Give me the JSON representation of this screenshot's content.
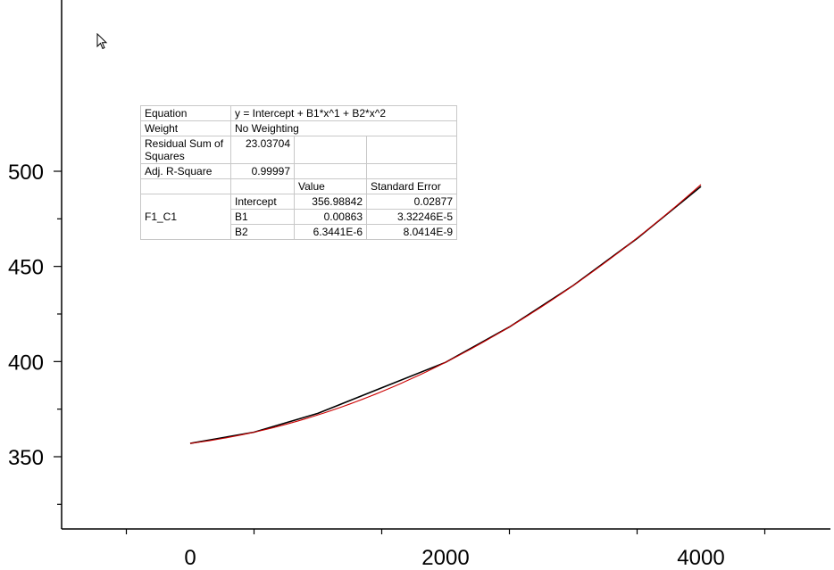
{
  "chart_data": {
    "type": "line",
    "title": "",
    "xlabel": "",
    "ylabel": "",
    "xlim": [
      -500,
      5000
    ],
    "ylim": [
      325,
      510
    ],
    "x_ticks": [
      0,
      2000,
      4000
    ],
    "y_ticks": [
      350,
      400,
      450,
      500
    ],
    "x_tick_labels": [
      "0",
      "2000",
      "4000"
    ],
    "y_tick_labels": [
      "350",
      "400",
      "450",
      "500"
    ],
    "grid": false,
    "series": [
      {
        "color": "#000000",
        "x": [
          0,
          500,
          1000,
          1500,
          2000,
          2500,
          3000,
          3500,
          4000
        ],
        "y": [
          357.0,
          362.9,
          372.8,
          386.2,
          399.6,
          418.2,
          440.0,
          464.7,
          492.0
        ]
      },
      {
        "color": "#cc0000",
        "fit": {
          "intercept": 356.98842,
          "b1": 0.00863,
          "b2": 6.3441e-06
        },
        "x_range": [
          0,
          4000
        ]
      }
    ]
  },
  "fit_table": {
    "equation_label": "Equation",
    "equation": "y = Intercept + B1*x^1 + B2*x^2",
    "weight_label": "Weight",
    "weight": "No Weighting",
    "rss_label": "Residual Sum of Squares",
    "rss": "23.03704",
    "r2_label": "Adj. R-Square",
    "r2": "0.99997",
    "value_header": "Value",
    "se_header": "Standard Error",
    "dataset": "F1_C1",
    "params": [
      {
        "name": "Intercept",
        "value": "356.98842",
        "se": "0.02877"
      },
      {
        "name": "B1",
        "value": "0.00863",
        "se": "3.32246E-5"
      },
      {
        "name": "B2",
        "value": "6.3441E-6",
        "se": "8.0414E-9"
      }
    ]
  }
}
